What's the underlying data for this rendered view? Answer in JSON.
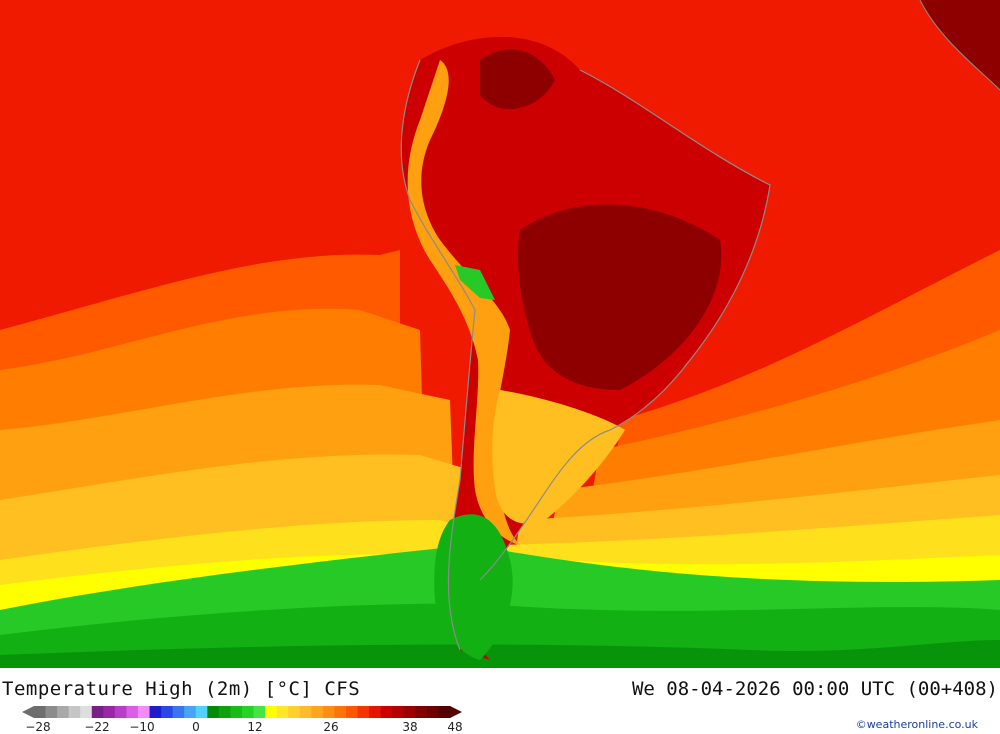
{
  "title": "Temperature High (2m) [°C] CFS",
  "datetime": "We 08-04-2026 00:00 UTC (00+408)",
  "credit": "©weatheronline.co.uk",
  "legend": {
    "ticks": [
      "-28",
      "-22",
      "-10",
      "0",
      "12",
      "26",
      "38",
      "48"
    ],
    "colors": [
      "#6e6e6e",
      "#8c8c8c",
      "#a9a9a9",
      "#c6c6c6",
      "#dedede",
      "#7a1e87",
      "#9a27a6",
      "#b73fc7",
      "#d95fe6",
      "#f08cf5",
      "#1d1dcc",
      "#2a46e6",
      "#3a75ee",
      "#47a5f3",
      "#52d2f8",
      "#058a05",
      "#0ea20e",
      "#19bb19",
      "#27d227",
      "#47e447",
      "#ffff00",
      "#ffe629",
      "#ffcf2e",
      "#ffbb2b",
      "#ffa520",
      "#ff8e14",
      "#ff750a",
      "#ff5800",
      "#f53500",
      "#e51500",
      "#cd0000",
      "#b40000",
      "#9b0000",
      "#820000",
      "#6a0000",
      "#550000"
    ]
  },
  "map": {
    "colors": {
      "ocean_hot": "#f01a00",
      "tropical_land": "#cc0000",
      "very_hot": "#8e0000",
      "hot_orange": "#ff5a00",
      "orange": "#ff7d00",
      "light_orange": "#ffa010",
      "yellow_orange": "#ffbf20",
      "yellow": "#ffe01c",
      "bright_yellow": "#ffff00",
      "green_light": "#26c926",
      "green": "#12b012",
      "green_dark": "#07940a",
      "coast_line": "#8c8c8c"
    }
  }
}
